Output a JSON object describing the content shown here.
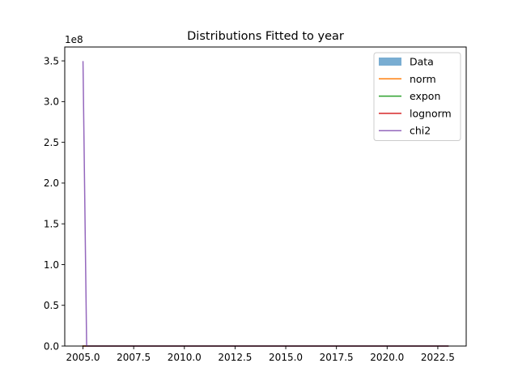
{
  "chart_data": {
    "type": "line",
    "title": "Distributions Fitted to year",
    "xlabel": "",
    "ylabel": "",
    "xlim": [
      2004.1,
      2023.9
    ],
    "ylim": [
      0,
      3.67
    ],
    "y_offset_label": "1e8",
    "x_ticks": [
      2005.0,
      2007.5,
      2010.0,
      2012.5,
      2015.0,
      2017.5,
      2020.0,
      2022.5
    ],
    "x_tick_labels": [
      "2005.0",
      "2007.5",
      "2010.0",
      "2012.5",
      "2015.0",
      "2017.5",
      "2020.0",
      "2022.5"
    ],
    "y_ticks": [
      0,
      0.5,
      1.0,
      1.5,
      2.0,
      2.5,
      3.0,
      3.5
    ],
    "y_tick_labels": [
      "0.0",
      "0.5",
      "1.0",
      "1.5",
      "2.0",
      "2.5",
      "3.0",
      "3.5"
    ],
    "grid": false,
    "legend_position": "top-right",
    "series": [
      {
        "name": "Data",
        "kind": "hist",
        "color": "#1f77b4",
        "x": [
          2005.0,
          2023.0
        ],
        "y": [
          0,
          0
        ]
      },
      {
        "name": "norm",
        "kind": "line",
        "color": "#ff7f0e",
        "x": [
          2005.0,
          2014.0,
          2023.0
        ],
        "y": [
          0,
          0,
          0
        ]
      },
      {
        "name": "expon",
        "kind": "line",
        "color": "#2ca02c",
        "x": [
          2005.0,
          2014.0,
          2023.0
        ],
        "y": [
          0,
          0,
          0
        ]
      },
      {
        "name": "lognorm",
        "kind": "line",
        "color": "#d62728",
        "x": [
          2005.0,
          2014.0,
          2023.0
        ],
        "y": [
          0,
          0,
          0
        ]
      },
      {
        "name": "chi2",
        "kind": "line",
        "color": "#9467bd",
        "x": [
          2005.0,
          2005.18,
          2014.0,
          2023.0
        ],
        "y": [
          3.49,
          0,
          0,
          0
        ]
      }
    ]
  }
}
